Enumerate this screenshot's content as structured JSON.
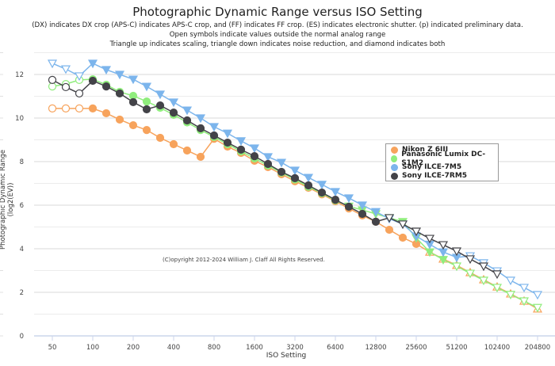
{
  "chart_data": {
    "type": "line",
    "title": "Photographic Dynamic Range versus ISO Setting",
    "subtitle": [
      "(DX) indicates DX crop (APS-C) indicates APS-C crop, and (FF) indicates FF crop. (ES) indicates electronic shutter. (p) indicated preliminary data.",
      "Open symbols indicate values outside the normal analog range",
      "Triangle up indicates scaling, triangle down indicates noise reduction, and diamond indicates both"
    ],
    "xlabel": "ISO Setting",
    "ylabel": "Photographic Dynamic Range (log2(EV))",
    "xscale": "log2",
    "xlim": [
      40,
      260000
    ],
    "ylim": [
      0,
      13
    ],
    "x_ticks": [
      50,
      100,
      200,
      400,
      800,
      1600,
      3200,
      6400,
      12800,
      25600,
      51200,
      102400,
      204800
    ],
    "y_ticks": [
      0,
      2,
      4,
      6,
      8,
      10,
      12
    ],
    "grid": true,
    "legend_position": "right",
    "annotation": "(C)opyright 2012-2024 William J. Claff All Rights Reserved.",
    "x_note": "Points are at 1/3-stop ISO steps; index i maps to ISO = 50 * 2^(i/3)",
    "series": [
      {
        "name": "Nikon Z 6III",
        "color": "#f7a35c",
        "values": [
          10.44,
          10.44,
          10.44,
          10.44,
          10.22,
          9.93,
          9.67,
          9.45,
          9.09,
          8.8,
          8.51,
          8.22,
          9.05,
          8.69,
          8.4,
          8.04,
          7.75,
          7.42,
          7.1,
          6.8,
          6.5,
          6.18,
          5.85,
          5.53,
          5.24,
          4.87,
          4.51,
          4.22,
          3.85,
          3.53,
          3.24,
          2.91,
          2.58,
          2.25,
          1.93,
          1.6,
          1.24
        ],
        "markers": [
          "oc",
          "oc",
          "oc",
          "c",
          "c",
          "c",
          "c",
          "c",
          "c",
          "c",
          "c",
          "c",
          "c",
          "c",
          "c",
          "c",
          "c",
          "c",
          "c",
          "c",
          "c",
          "c",
          "c",
          "c",
          "c",
          "c",
          "c",
          "c",
          "otu",
          "otu",
          "otu",
          "otu",
          "otu",
          "otu",
          "otu",
          "otu",
          "otu"
        ]
      },
      {
        "name": "Panasonic Lumix DC-S1M2",
        "color": "#90ed7d",
        "values": [
          11.45,
          11.56,
          11.75,
          11.78,
          11.53,
          11.2,
          11.02,
          10.76,
          10.47,
          10.15,
          9.8,
          9.45,
          9.13,
          8.8,
          8.47,
          8.15,
          7.82,
          7.5,
          7.18,
          6.85,
          6.55,
          6.22,
          5.95,
          5.78,
          5.6,
          5.42,
          5.24,
          4.5,
          3.85,
          3.5,
          3.2,
          2.87,
          2.55,
          2.22,
          1.9,
          1.6,
          1.3
        ],
        "markers": [
          "oc",
          "oc",
          "oc",
          "c",
          "c",
          "c",
          "c",
          "c",
          "c",
          "c",
          "c",
          "c",
          "c",
          "c",
          "c",
          "c",
          "c",
          "c",
          "c",
          "c",
          "c",
          "c",
          "td",
          "td",
          "td",
          "td",
          "td",
          "td",
          "td",
          "td",
          "otd",
          "otd",
          "otd",
          "otd",
          "otd",
          "otd",
          "otd"
        ]
      },
      {
        "name": "Sony ILCE-7M5",
        "color": "#7cb5ec",
        "values": [
          12.51,
          12.25,
          11.93,
          12.51,
          12.22,
          12.0,
          11.78,
          11.45,
          11.09,
          10.73,
          10.36,
          10.0,
          9.6,
          9.3,
          8.95,
          8.62,
          8.22,
          7.96,
          7.6,
          7.27,
          6.95,
          6.62,
          6.33,
          6.0,
          5.7,
          5.38,
          5.13,
          4.58,
          4.2,
          3.85,
          3.6,
          3.67,
          3.35,
          2.98,
          2.55,
          2.22,
          1.89
        ],
        "markers": [
          "otd",
          "otd",
          "otd",
          "td",
          "td",
          "td",
          "td",
          "td",
          "td",
          "td",
          "td",
          "td",
          "td",
          "td",
          "td",
          "td",
          "td",
          "td",
          "td",
          "td",
          "td",
          "td",
          "td",
          "td",
          "td",
          "td",
          "td",
          "td",
          "td",
          "td",
          "td",
          "otd",
          "otd",
          "otd",
          "otd",
          "otd",
          "otd"
        ]
      },
      {
        "name": "Sony ILCE-7RM5",
        "color": "#434348",
        "values": [
          11.75,
          11.42,
          11.13,
          11.71,
          11.45,
          11.13,
          10.73,
          10.4,
          10.58,
          10.25,
          9.89,
          9.53,
          9.2,
          8.87,
          8.55,
          8.25,
          7.89,
          7.53,
          7.24,
          6.91,
          6.58,
          6.25,
          5.93,
          5.6,
          5.24,
          5.42,
          5.13,
          4.8,
          4.47,
          4.18,
          3.89,
          3.53,
          3.2,
          2.84
        ],
        "markers": [
          "oc",
          "oc",
          "oc",
          "c",
          "c",
          "c",
          "c",
          "c",
          "c",
          "c",
          "c",
          "c",
          "c",
          "c",
          "c",
          "c",
          "c",
          "c",
          "c",
          "c",
          "c",
          "c",
          "c",
          "c",
          "c",
          "otd",
          "otd",
          "otd",
          "otd",
          "otd",
          "otd",
          "otd",
          "otd",
          "otd"
        ]
      }
    ]
  }
}
